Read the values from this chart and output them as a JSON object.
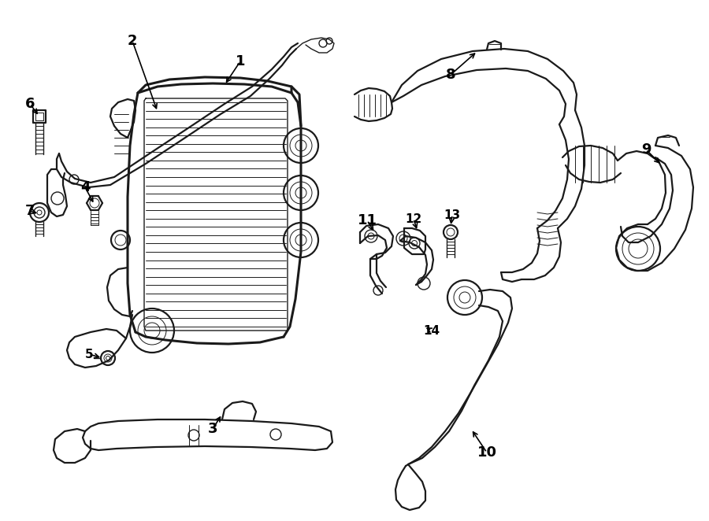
{
  "bg_color": "#ffffff",
  "line_color": "#1a1a1a",
  "lw_thick": 2.2,
  "lw_med": 1.6,
  "lw_thin": 1.0,
  "lw_fine": 0.7,
  "label_fontsize": 13,
  "label_fontsize_sm": 11
}
